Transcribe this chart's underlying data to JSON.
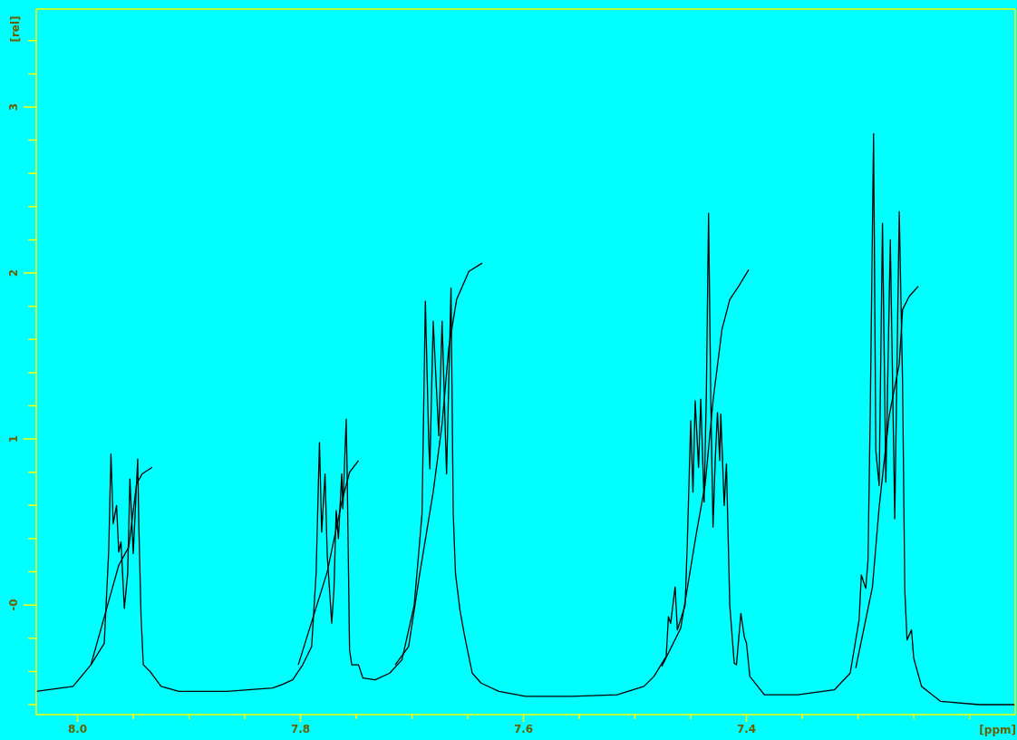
{
  "chart_data": {
    "type": "line",
    "xlabel": "[ppm]",
    "ylabel": "[rel]",
    "marker": "none",
    "line_style": "solid",
    "xlim": [
      8.037,
      7.159
    ],
    "ylim": [
      -0.66,
      3.59
    ],
    "xticks": [
      {
        "value": 8.0,
        "label": "8.0"
      },
      {
        "value": 7.95,
        "label": null
      },
      {
        "value": 7.9,
        "label": null
      },
      {
        "value": 7.85,
        "label": null
      },
      {
        "value": 7.8,
        "label": "7.8"
      },
      {
        "value": 7.75,
        "label": null
      },
      {
        "value": 7.7,
        "label": null
      },
      {
        "value": 7.65,
        "label": null
      },
      {
        "value": 7.6,
        "label": "7.6"
      },
      {
        "value": 7.55,
        "label": null
      },
      {
        "value": 7.5,
        "label": null
      },
      {
        "value": 7.45,
        "label": null
      },
      {
        "value": 7.4,
        "label": "7.4"
      },
      {
        "value": 7.35,
        "label": null
      },
      {
        "value": 7.3,
        "label": null
      },
      {
        "value": 7.25,
        "label": null
      },
      {
        "value": 7.2,
        "label": null
      }
    ],
    "yticks": [
      {
        "value": -0.6,
        "label": null
      },
      {
        "value": -0.4,
        "label": null
      },
      {
        "value": -0.2,
        "label": null
      },
      {
        "value": 0,
        "label": "-0"
      },
      {
        "value": 0.2,
        "label": null
      },
      {
        "value": 0.4,
        "label": null
      },
      {
        "value": 0.6,
        "label": null
      },
      {
        "value": 0.8,
        "label": null
      },
      1,
      {
        "value": 1.2,
        "label": null
      },
      {
        "value": 1.4,
        "label": null
      },
      {
        "value": 1.6,
        "label": null
      },
      {
        "value": 1.8,
        "label": null
      },
      2,
      {
        "value": 2.2,
        "label": null
      },
      {
        "value": 2.4,
        "label": null
      },
      {
        "value": 2.6,
        "label": null
      },
      {
        "value": 2.8,
        "label": null
      },
      3,
      {
        "value": 3.2,
        "label": null
      },
      {
        "value": 3.4,
        "label": null
      }
    ],
    "series": [
      {
        "color": "#000000",
        "x": [
          8.037,
          8.004,
          7.988,
          7.976,
          7.972,
          7.97,
          7.968,
          7.965,
          7.963,
          7.961,
          7.958,
          7.955,
          7.953,
          7.95,
          7.946,
          7.945,
          7.943,
          7.941,
          7.935,
          7.925,
          7.909,
          7.866,
          7.825,
          7.817,
          7.807,
          7.798,
          7.79,
          7.786,
          7.783,
          7.781,
          7.778,
          7.776,
          7.772,
          7.77,
          7.768,
          7.766,
          7.763,
          7.762,
          7.759,
          7.758,
          7.756,
          7.754,
          7.748,
          7.744,
          7.733,
          7.72,
          7.709,
          7.698,
          7.691,
          7.688,
          7.685,
          7.684,
          7.681,
          7.676,
          7.673,
          7.669,
          7.665,
          7.663,
          7.661,
          7.657,
          7.653,
          7.646,
          7.638,
          7.622,
          7.598,
          7.557,
          7.516,
          7.492,
          7.483,
          7.472,
          7.47,
          7.468,
          7.464,
          7.462,
          7.455,
          7.453,
          7.45,
          7.448,
          7.446,
          7.443,
          7.441,
          7.438,
          7.436,
          7.434,
          7.432,
          7.43,
          7.428,
          7.426,
          7.424,
          7.423,
          7.42,
          7.418,
          7.415,
          7.411,
          7.409,
          7.405,
          7.402,
          7.4,
          7.397,
          7.384,
          7.354,
          7.321,
          7.307,
          7.299,
          7.297,
          7.293,
          7.291,
          7.289,
          7.286,
          7.284,
          7.281,
          7.278,
          7.275,
          7.271,
          7.267,
          7.263,
          7.26,
          7.258,
          7.256,
          7.252,
          7.25,
          7.243,
          7.226,
          7.191,
          7.159
        ],
        "values": [
          -0.52,
          -0.49,
          -0.36,
          -0.23,
          0.33,
          0.91,
          0.49,
          0.6,
          0.32,
          0.38,
          -0.02,
          0.19,
          0.76,
          0.31,
          0.88,
          0.48,
          -0.07,
          -0.36,
          -0.4,
          -0.49,
          -0.52,
          -0.52,
          -0.5,
          -0.48,
          -0.45,
          -0.36,
          -0.25,
          0.19,
          0.98,
          0.44,
          0.79,
          0.3,
          -0.11,
          0.09,
          0.57,
          0.4,
          0.79,
          0.58,
          1.12,
          0.73,
          -0.27,
          -0.36,
          -0.36,
          -0.44,
          -0.45,
          -0.41,
          -0.33,
          0.0,
          0.55,
          1.83,
          0.98,
          0.82,
          1.71,
          1.02,
          1.71,
          0.79,
          1.91,
          0.55,
          0.19,
          -0.03,
          -0.18,
          -0.41,
          -0.47,
          -0.52,
          -0.55,
          -0.55,
          -0.54,
          -0.49,
          -0.43,
          -0.31,
          -0.07,
          -0.11,
          0.11,
          -0.15,
          0.0,
          0.39,
          1.11,
          0.68,
          1.23,
          0.83,
          1.24,
          0.62,
          1.27,
          2.36,
          1.23,
          0.47,
          0.88,
          1.16,
          0.87,
          1.15,
          0.6,
          0.85,
          0.0,
          -0.35,
          -0.36,
          -0.05,
          -0.19,
          -0.23,
          -0.43,
          -0.54,
          -0.54,
          -0.51,
          -0.41,
          -0.09,
          0.18,
          0.1,
          0.27,
          1.16,
          2.84,
          0.93,
          0.72,
          2.3,
          0.74,
          2.2,
          0.52,
          2.37,
          1.34,
          0.09,
          -0.21,
          -0.15,
          -0.32,
          -0.49,
          -0.58,
          -0.6,
          -0.6
        ]
      },
      {
        "color": "#000000",
        "x": [
          7.988,
          7.963,
          7.954,
          7.947,
          7.942,
          7.933
        ],
        "values": [
          -0.36,
          0.24,
          0.35,
          0.73,
          0.79,
          0.83
        ]
      },
      {
        "color": "#000000",
        "x": [
          7.802,
          7.776,
          7.763,
          7.756,
          7.748
        ],
        "values": [
          -0.36,
          0.2,
          0.62,
          0.8,
          0.87
        ]
      },
      {
        "color": "#000000",
        "x": [
          7.715,
          7.703,
          7.693,
          7.681,
          7.673,
          7.667,
          7.66,
          7.649,
          7.637
        ],
        "values": [
          -0.36,
          -0.25,
          0.19,
          0.68,
          1.09,
          1.55,
          1.84,
          2.01,
          2.06
        ]
      },
      {
        "color": "#000000",
        "x": [
          7.476,
          7.459,
          7.445,
          7.437,
          7.43,
          7.422,
          7.415,
          7.407,
          7.398
        ],
        "values": [
          -0.37,
          -0.14,
          0.43,
          0.73,
          1.23,
          1.66,
          1.84,
          1.92,
          2.02
        ]
      },
      {
        "color": "#000000",
        "x": [
          7.302,
          7.287,
          7.281,
          7.272,
          7.263,
          7.26,
          7.254,
          7.246
        ],
        "values": [
          -0.38,
          0.11,
          0.59,
          1.14,
          1.45,
          1.78,
          1.86,
          1.92
        ]
      }
    ]
  }
}
